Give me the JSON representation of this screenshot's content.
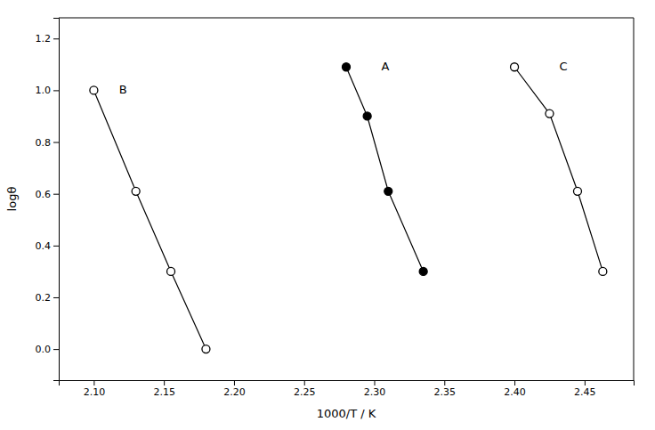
{
  "chart_data": {
    "type": "line",
    "x_label": "1000/T / K",
    "y_label": "logθ",
    "series": [
      {
        "x": [
          2.1,
          2.13,
          2.155,
          2.18
        ],
        "values": [
          1.0,
          0.61,
          0.3,
          0.0
        ],
        "color": "black",
        "marker": "open-circle",
        "line_style": "solid"
      },
      {
        "x": [
          2.28,
          2.295,
          2.31,
          2.335
        ],
        "values": [
          1.09,
          0.9,
          0.61,
          0.3
        ],
        "color": "black",
        "marker": "filled-circle",
        "line_style": "solid"
      },
      {
        "x": [
          2.4,
          2.425,
          2.445,
          2.463
        ],
        "values": [
          1.09,
          0.91,
          0.61,
          0.3
        ],
        "color": "black",
        "marker": "open-circle",
        "line_style": "solid"
      }
    ],
    "annotations": [
      {
        "text": "A",
        "x": 2.305,
        "y": 1.09
      },
      {
        "text": "B",
        "x": 2.118,
        "y": 1.0
      },
      {
        "text": "C",
        "x": 2.432,
        "y": 1.09
      }
    ],
    "xlim": [
      2.075,
      2.485
    ],
    "ylim": [
      -0.12,
      1.28
    ],
    "xticks": [
      {
        "value": 2.1,
        "label": "2.10"
      },
      2.15,
      {
        "value": 2.2,
        "label": "2.20"
      },
      2.25,
      {
        "value": 2.3,
        "label": "2.30"
      },
      2.35,
      {
        "value": 2.4,
        "label": "2.40"
      },
      2.45
    ],
    "yticks": [
      {
        "value": 0,
        "label": "0.0"
      },
      0.2,
      0.4,
      0.6,
      0.8,
      {
        "value": 1,
        "label": "1.0"
      },
      1.2
    ],
    "grid": false
  }
}
